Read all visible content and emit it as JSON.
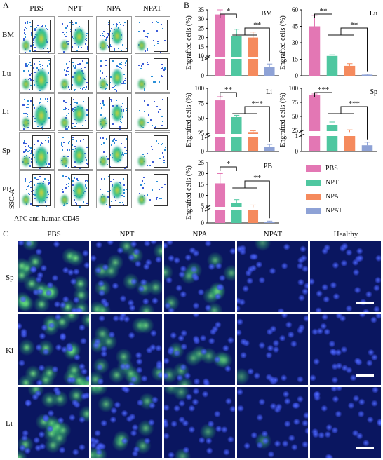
{
  "panels": {
    "A": "A",
    "B": "B",
    "C": "C"
  },
  "flow": {
    "columns": [
      "PBS",
      "NPT",
      "NPA",
      "NPAT"
    ],
    "rows": [
      "BM",
      "Lu",
      "Li",
      "Sp",
      "PB"
    ],
    "y_axis": "SSC-A",
    "x_axis": "APC anti human CD45"
  },
  "colors": {
    "PBS": "#e377b4",
    "NPT": "#4fc7a0",
    "NPA": "#f58a5d",
    "NPAT": "#8ea2d6"
  },
  "chart_data": [
    {
      "type": "bar",
      "title": "BM",
      "ylabel": "Engrafted cells (%)",
      "categories": [
        "PBS",
        "NPT",
        "NPA",
        "NPAT"
      ],
      "values": [
        32.5,
        21,
        20,
        0.5
      ],
      "errors": [
        2.5,
        3.5,
        3,
        0.2
      ],
      "ticks": [
        "0",
        "1",
        "10",
        "15",
        "20",
        "25",
        "30",
        "35"
      ],
      "sig": [
        "*",
        "**"
      ]
    },
    {
      "type": "bar",
      "title": "Lu",
      "ylabel": "",
      "categories": [
        "PBS",
        "NPT",
        "NPA",
        "NPAT"
      ],
      "values": [
        45,
        18,
        9,
        1
      ],
      "errors": [
        10,
        1,
        2,
        0.5
      ],
      "ticks": [
        "0",
        "15",
        "30",
        "45",
        "60"
      ],
      "sig": [
        "**",
        "**"
      ]
    },
    {
      "type": "bar",
      "title": "Li",
      "ylabel": "Engrafted cells (%)",
      "categories": [
        "PBS",
        "NPT",
        "NPA",
        "NPAT"
      ],
      "values": [
        80,
        52,
        27,
        0.3
      ],
      "errors": [
        6,
        3,
        2,
        0.2
      ],
      "ticks": [
        "0",
        "1",
        "25",
        "50",
        "75",
        "100"
      ],
      "sig": [
        "**",
        "***"
      ]
    },
    {
      "type": "bar",
      "title": "Sp",
      "ylabel": "Engrafted cells (%)",
      "categories": [
        "PBS",
        "NPT",
        "NPA",
        "NPAT"
      ],
      "values": [
        88,
        35,
        22,
        0.4
      ],
      "errors": [
        2,
        5,
        4,
        0.2
      ],
      "ticks": [
        "0",
        "1",
        "25",
        "50",
        "75",
        "100"
      ],
      "sig": [
        "***",
        "***"
      ]
    },
    {
      "type": "bar",
      "title": "PB",
      "ylabel": "Engrafted cells (%)",
      "categories": [
        "PBS",
        "NPT",
        "NPA",
        "NPAT"
      ],
      "values": [
        15.5,
        6.5,
        4.5,
        0.1
      ],
      "errors": [
        4.5,
        1.5,
        1,
        0.05
      ],
      "ticks": [
        "0",
        "1",
        "5",
        "10",
        "15",
        "20",
        "25"
      ],
      "sig": [
        "*",
        "**"
      ]
    }
  ],
  "legend": [
    "PBS",
    "NPT",
    "NPA",
    "NPAT"
  ],
  "micro": {
    "columns": [
      "PBS",
      "NPT",
      "NPA",
      "NPAT",
      "Healthy"
    ],
    "rows": [
      "Sp",
      "Ki",
      "Li"
    ],
    "green_level": [
      [
        0.9,
        0.6,
        0.45,
        0.05,
        0.02
      ],
      [
        0.8,
        0.6,
        0.4,
        0.03,
        0.02
      ],
      [
        0.7,
        0.45,
        0.2,
        0.03,
        0.02
      ]
    ]
  }
}
